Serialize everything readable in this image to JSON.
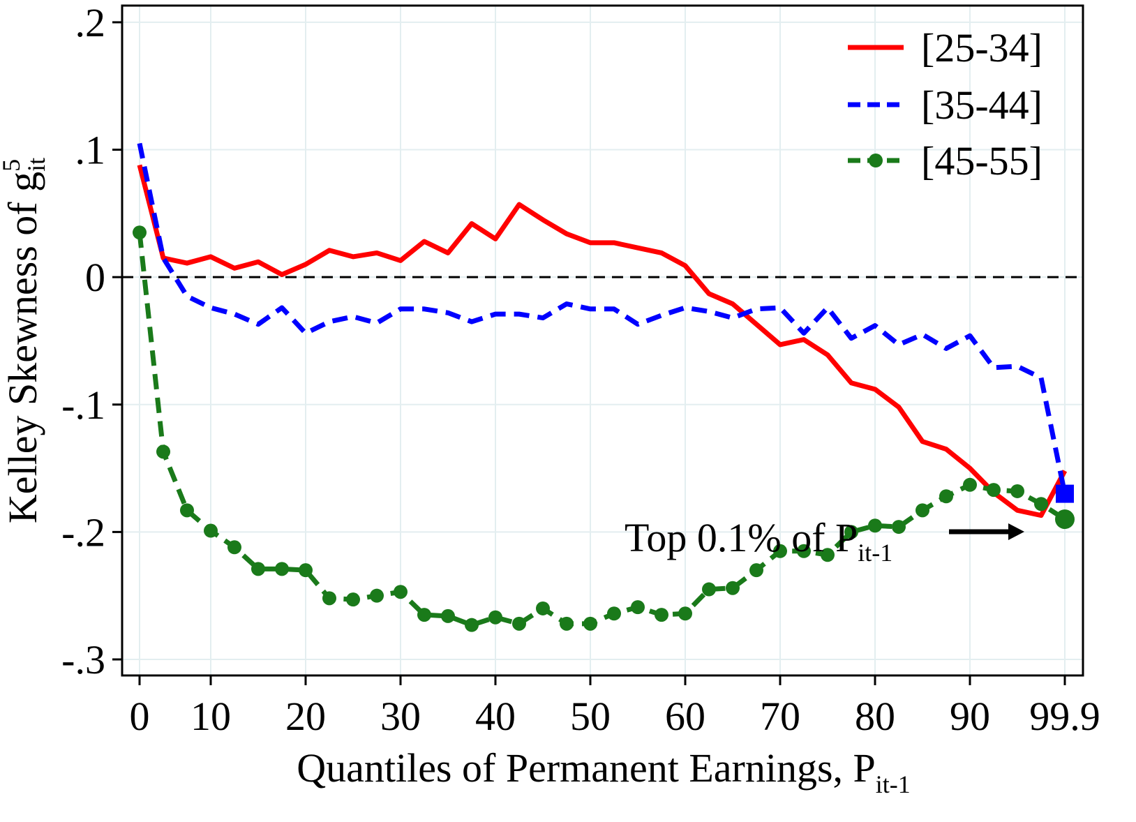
{
  "chart_data": {
    "type": "line",
    "ylabel": {
      "text": "Kelley Skewness of g",
      "sup": "5",
      "sub": "it"
    },
    "xlabel": {
      "text": "Quantiles of Permanent Earnings, P",
      "sub": "it-1"
    },
    "annotation": {
      "text": "Top 0.1% of P",
      "sub": "it-1"
    },
    "categories": [
      "0",
      null,
      null,
      "10",
      null,
      null,
      null,
      "20",
      null,
      null,
      null,
      "30",
      null,
      null,
      null,
      "40",
      null,
      null,
      null,
      "50",
      null,
      null,
      null,
      "60",
      null,
      null,
      null,
      "70",
      null,
      null,
      null,
      "80",
      null,
      null,
      null,
      "90",
      null,
      null,
      null,
      "99.9"
    ],
    "series": [
      {
        "name": "[25-34]",
        "color": "#ff0000",
        "dash": "solid",
        "marker": "none",
        "values": [
          0.088,
          0.015,
          0.011,
          0.016,
          0.007,
          0.012,
          0.002,
          0.01,
          0.021,
          0.016,
          0.019,
          0.013,
          0.028,
          0.019,
          0.042,
          0.03,
          0.057,
          0.045,
          0.034,
          0.027,
          0.027,
          0.023,
          0.019,
          0.009,
          -0.013,
          -0.021,
          -0.037,
          -0.053,
          -0.049,
          -0.061,
          -0.083,
          -0.088,
          -0.102,
          -0.129,
          -0.135,
          -0.15,
          -0.169,
          -0.183,
          -0.187,
          -0.152
        ]
      },
      {
        "name": "[35-44]",
        "color": "#0000ff",
        "dash": "dash",
        "marker": "none",
        "values": [
          0.105,
          0.015,
          -0.015,
          -0.024,
          -0.029,
          -0.037,
          -0.024,
          -0.044,
          -0.035,
          -0.031,
          -0.036,
          -0.025,
          -0.025,
          -0.028,
          -0.035,
          -0.029,
          -0.029,
          -0.032,
          -0.021,
          -0.025,
          -0.025,
          -0.037,
          -0.03,
          -0.024,
          -0.027,
          -0.032,
          -0.025,
          -0.024,
          -0.044,
          -0.024,
          -0.048,
          -0.038,
          -0.053,
          -0.045,
          -0.056,
          -0.046,
          -0.071,
          -0.07,
          -0.079,
          -0.17
        ]
      },
      {
        "name": "[45-55]",
        "color": "#1a7a1a",
        "dash": "dash",
        "marker": "circle",
        "values": [
          0.035,
          -0.137,
          -0.183,
          -0.199,
          -0.212,
          -0.229,
          -0.229,
          -0.23,
          -0.252,
          -0.253,
          -0.25,
          -0.247,
          -0.265,
          -0.266,
          -0.273,
          -0.267,
          -0.272,
          -0.26,
          -0.272,
          -0.272,
          -0.264,
          -0.259,
          -0.265,
          -0.264,
          -0.245,
          -0.244,
          -0.23,
          -0.215,
          -0.215,
          -0.218,
          -0.2,
          -0.195,
          -0.196,
          -0.183,
          -0.172,
          -0.163,
          -0.167,
          -0.168,
          -0.178,
          -0.19
        ]
      }
    ],
    "ylim": [
      -0.3126,
      0.2131
    ],
    "yticks": [
      {
        "value": -0.3,
        "label": "-.3"
      },
      {
        "value": -0.2,
        "label": "-.2"
      },
      {
        "value": -0.1,
        "label": "-.1"
      },
      0,
      {
        "value": 0.1,
        "label": ".1"
      },
      {
        "value": 0.2,
        "label": ".2"
      }
    ],
    "hline": 0,
    "grid": true,
    "legend": "top-right"
  }
}
